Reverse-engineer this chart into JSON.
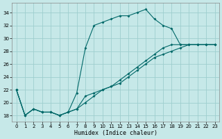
{
  "xlabel": "Humidex (Indice chaleur)",
  "background_color": "#c6e8e8",
  "grid_color": "#9ecece",
  "line_color": "#006868",
  "xlim": [
    -0.5,
    23.5
  ],
  "ylim": [
    17.0,
    35.5
  ],
  "yticks": [
    18,
    20,
    22,
    24,
    26,
    28,
    30,
    32,
    34
  ],
  "xticks": [
    0,
    1,
    2,
    3,
    4,
    5,
    6,
    7,
    8,
    9,
    10,
    11,
    12,
    13,
    14,
    15,
    16,
    17,
    18,
    19,
    20,
    21,
    22,
    23
  ],
  "series": [
    {
      "x": [
        0,
        1,
        2,
        3,
        4,
        5,
        6,
        7,
        8,
        9,
        10,
        11,
        12,
        13,
        14,
        15,
        16,
        17,
        18,
        19,
        20,
        21,
        22,
        23
      ],
      "y": [
        22,
        18,
        19,
        18.5,
        18.5,
        18,
        18.5,
        21.5,
        28.5,
        32,
        32.5,
        33,
        33.5,
        33.5,
        34,
        34.5,
        33,
        32,
        31.5,
        29,
        29,
        29,
        29,
        29
      ]
    },
    {
      "x": [
        0,
        1,
        2,
        3,
        4,
        5,
        6,
        7,
        8,
        9,
        10,
        11,
        12,
        13,
        14,
        15,
        16,
        17,
        18,
        19,
        20,
        21,
        22,
        23
      ],
      "y": [
        22,
        18,
        19,
        18.5,
        18.5,
        18,
        18.5,
        19,
        21,
        21.5,
        22,
        22.5,
        23.5,
        24.5,
        25.5,
        26.5,
        27.5,
        28.5,
        29,
        29,
        29,
        29,
        29,
        29
      ]
    },
    {
      "x": [
        0,
        1,
        2,
        3,
        4,
        5,
        6,
        7,
        8,
        9,
        10,
        11,
        12,
        13,
        14,
        15,
        16,
        17,
        18,
        19,
        20,
        21,
        22,
        23
      ],
      "y": [
        22,
        18,
        19,
        18.5,
        18.5,
        18,
        18.5,
        19,
        20,
        21,
        22,
        22.5,
        23,
        24,
        25,
        26,
        27,
        27.5,
        28,
        28.5,
        29,
        29,
        29,
        29
      ]
    }
  ]
}
